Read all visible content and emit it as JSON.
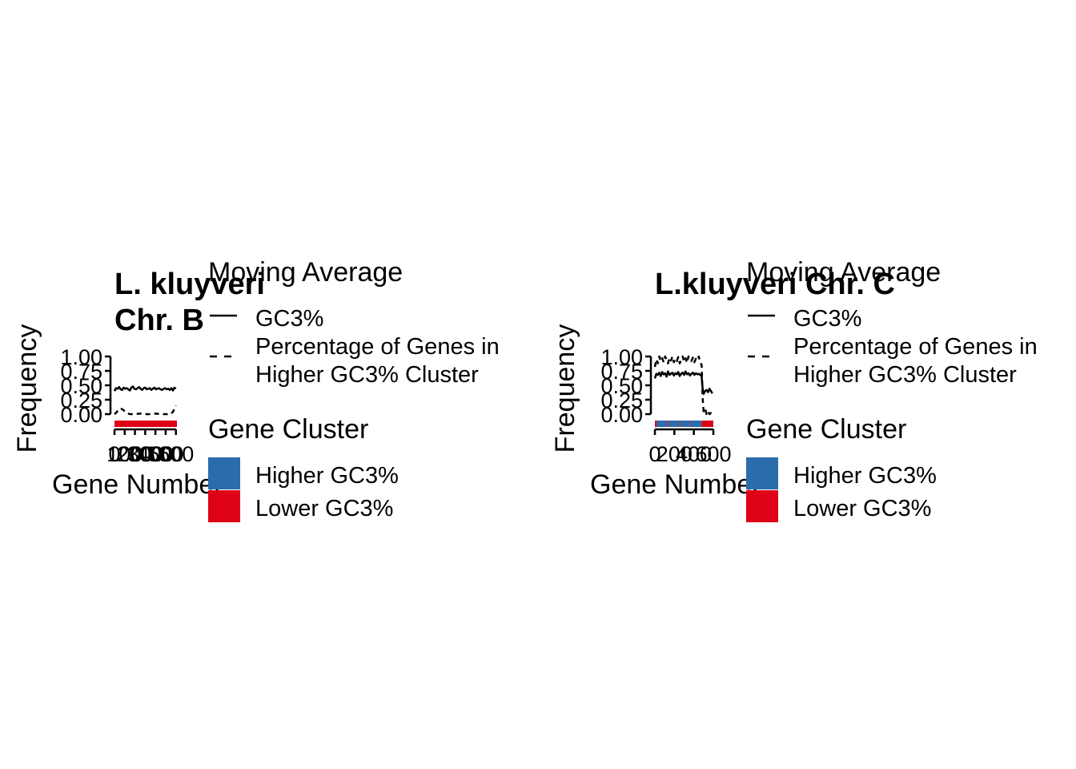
{
  "chart_data": [
    {
      "type": "line",
      "title_lines": [
        "L. kluyveri",
        "Chr. B"
      ],
      "xlabel": "Gene Number",
      "ylabel": "Frequency",
      "xlim": [
        0,
        610
      ],
      "ylim": [
        0,
        1
      ],
      "x_ticks": [
        0,
        100,
        200,
        300,
        400,
        500,
        600
      ],
      "x_tick_labels": [
        "0",
        "100",
        "200",
        "300",
        "400",
        "500",
        "600"
      ],
      "y_ticks": [
        0,
        0.25,
        0.5,
        0.75,
        1
      ],
      "y_tick_labels": [
        "0.00",
        "0.25",
        "0.50",
        "0.75",
        "1.00"
      ],
      "series": [
        {
          "name": "GC3%",
          "style": "solid",
          "x": [
            0,
            15,
            30,
            45,
            60,
            75,
            90,
            105,
            120,
            135,
            150,
            165,
            180,
            195,
            210,
            225,
            240,
            255,
            270,
            285,
            300,
            315,
            330,
            345,
            360,
            375,
            390,
            405,
            420,
            435,
            450,
            465,
            480,
            495,
            510,
            525,
            540,
            555,
            570,
            585,
            600
          ],
          "y": [
            0.4,
            0.45,
            0.44,
            0.47,
            0.43,
            0.42,
            0.46,
            0.44,
            0.45,
            0.43,
            0.41,
            0.46,
            0.48,
            0.44,
            0.43,
            0.45,
            0.47,
            0.44,
            0.42,
            0.45,
            0.46,
            0.43,
            0.44,
            0.45,
            0.42,
            0.44,
            0.46,
            0.43,
            0.44,
            0.45,
            0.43,
            0.42,
            0.44,
            0.45,
            0.43,
            0.44,
            0.42,
            0.45,
            0.41,
            0.46,
            0.44
          ]
        },
        {
          "name": "Percentage of Genes in Higher GC3% Cluster",
          "style": "dashed",
          "x": [
            0,
            20,
            40,
            60,
            80,
            100,
            120,
            150,
            200,
            250,
            300,
            350,
            400,
            450,
            500,
            550,
            575,
            590,
            600
          ],
          "y": [
            0.0,
            0.03,
            0.08,
            0.1,
            0.08,
            0.05,
            0.02,
            0.0,
            0.0,
            0.01,
            0.0,
            0.0,
            0.01,
            0.0,
            0.0,
            0.0,
            0.05,
            0.12,
            0.15
          ]
        }
      ],
      "cluster_strip": [
        {
          "start": 0,
          "end": 610,
          "cluster": "Lower GC3%"
        }
      ]
    },
    {
      "type": "line",
      "title_lines": [
        "L.kluyveri Chr. C"
      ],
      "xlabel": "Gene Number",
      "ylabel": "Frequency",
      "xlim": [
        0,
        600
      ],
      "ylim": [
        0,
        1
      ],
      "x_ticks": [
        0,
        200,
        400,
        600
      ],
      "x_tick_labels": [
        "0",
        "200",
        "400",
        "600"
      ],
      "y_ticks": [
        0,
        0.25,
        0.5,
        0.75,
        1
      ],
      "y_tick_labels": [
        "0.00",
        "0.25",
        "0.50",
        "0.75",
        "1.00"
      ],
      "series": [
        {
          "name": "GC3%",
          "style": "solid",
          "x": [
            0,
            15,
            30,
            45,
            60,
            75,
            90,
            105,
            120,
            135,
            150,
            165,
            180,
            195,
            210,
            225,
            240,
            255,
            270,
            285,
            300,
            315,
            330,
            345,
            360,
            375,
            390,
            405,
            420,
            435,
            450,
            465,
            480,
            490,
            500,
            515,
            530,
            545,
            560,
            575,
            590
          ],
          "y": [
            0.62,
            0.7,
            0.68,
            0.72,
            0.66,
            0.73,
            0.69,
            0.71,
            0.65,
            0.74,
            0.68,
            0.7,
            0.72,
            0.67,
            0.71,
            0.69,
            0.73,
            0.66,
            0.7,
            0.72,
            0.68,
            0.74,
            0.69,
            0.71,
            0.67,
            0.7,
            0.72,
            0.68,
            0.71,
            0.69,
            0.7,
            0.68,
            0.66,
            0.45,
            0.35,
            0.4,
            0.42,
            0.38,
            0.44,
            0.4,
            0.36
          ]
        },
        {
          "name": "Percentage of Genes in Higher GC3% Cluster",
          "style": "dashed",
          "x": [
            0,
            15,
            30,
            45,
            60,
            75,
            90,
            105,
            120,
            135,
            150,
            165,
            180,
            195,
            210,
            225,
            240,
            255,
            270,
            285,
            300,
            315,
            330,
            345,
            360,
            375,
            390,
            405,
            420,
            435,
            450,
            465,
            480,
            490,
            500,
            515,
            530,
            545,
            560,
            575,
            590
          ],
          "y": [
            0.82,
            0.95,
            0.88,
            1.0,
            0.92,
            0.97,
            0.9,
            1.0,
            0.94,
            0.88,
            0.98,
            0.93,
            1.0,
            0.9,
            0.96,
            0.92,
            0.99,
            0.88,
            0.95,
            1.0,
            0.91,
            0.97,
            0.89,
            1.0,
            0.94,
            0.92,
            0.98,
            0.9,
            0.96,
            0.93,
            1.0,
            0.91,
            0.85,
            0.3,
            0.05,
            0.1,
            0.0,
            0.05,
            0.0,
            0.02,
            0.0
          ]
        }
      ],
      "cluster_strip": [
        {
          "start": 0,
          "end": 20,
          "cluster": "Lower GC3%"
        },
        {
          "start": 20,
          "end": 130,
          "cluster": "Higher GC3%"
        },
        {
          "start": 130,
          "end": 140,
          "cluster": "Lower GC3%"
        },
        {
          "start": 140,
          "end": 250,
          "cluster": "Higher GC3%"
        },
        {
          "start": 250,
          "end": 258,
          "cluster": "Lower GC3%"
        },
        {
          "start": 258,
          "end": 360,
          "cluster": "Higher GC3%"
        },
        {
          "start": 360,
          "end": 366,
          "cluster": "Lower GC3%"
        },
        {
          "start": 366,
          "end": 480,
          "cluster": "Higher GC3%"
        },
        {
          "start": 480,
          "end": 600,
          "cluster": "Lower GC3%"
        }
      ]
    }
  ],
  "legend": {
    "moving_average_title": "Moving Average",
    "line_items": [
      {
        "style": "solid",
        "label_lines": [
          "GC3%"
        ]
      },
      {
        "style": "dashed",
        "label_lines": [
          "Percentage of Genes in",
          "Higher GC3% Cluster"
        ]
      }
    ],
    "cluster_title": "Gene Cluster",
    "cluster_items": [
      {
        "label": "Higher GC3%",
        "color": "#2B6CAC"
      },
      {
        "label": "Lower GC3%",
        "color": "#DE0218"
      }
    ]
  },
  "colors": {
    "higher": "#2B6CAC",
    "lower": "#DE0218",
    "line": "#000000"
  }
}
